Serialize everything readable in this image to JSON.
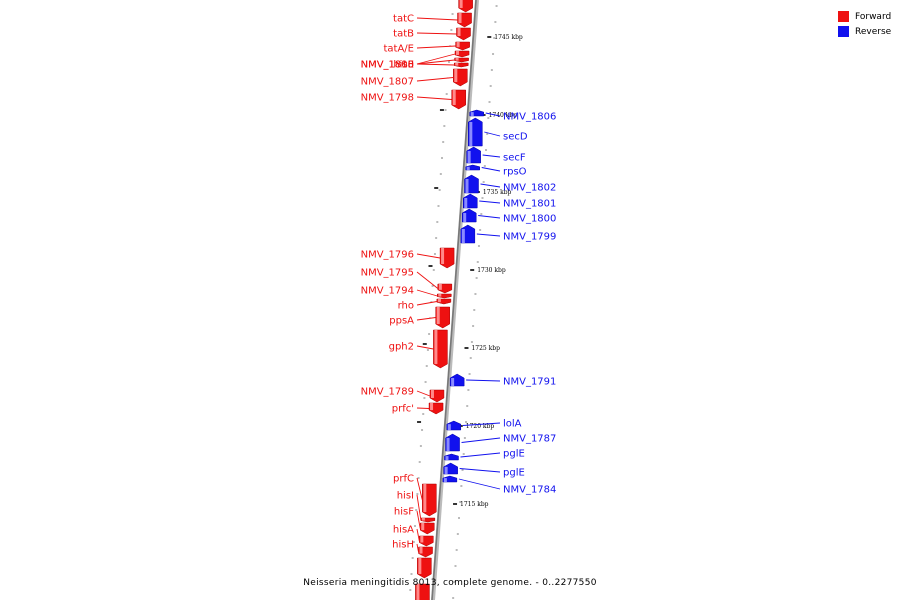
{
  "title": "Neisseria meningitidis 8013, complete genome. - 0..2277550",
  "legend": [
    {
      "label": "Forward",
      "color": "#ee1111"
    },
    {
      "label": "Reverse",
      "color": "#1111ee"
    }
  ],
  "colors": {
    "forward": "#ee1111",
    "reverse": "#1111ee",
    "backbone": "#777777"
  },
  "ticks": [
    "1745 kbp",
    "1740 kbp",
    "1735 kbp",
    "1730 kbp",
    "1725 kbp",
    "1720 kbp",
    "1715 kbp"
  ],
  "forward_genes": [
    "tatC",
    "tatB",
    "tatA/E",
    "NMV_1810",
    "hisE",
    "NMV_1808",
    "NMV_1807",
    "NMV_1798",
    "NMV_1796",
    "NMV_1795",
    "NMV_1794",
    "rho",
    "ppsA",
    "gph2",
    "NMV_1789",
    "prfc'",
    "prfC",
    "hisI",
    "hisF",
    "hisA",
    "hisH"
  ],
  "reverse_genes": [
    "NMV_1806",
    "secD",
    "secF",
    "rpsO",
    "NMV_1802",
    "NMV_1801",
    "NMV_1800",
    "NMV_1799",
    "NMV_1791",
    "lolA",
    "NMV_1787",
    "pglE",
    "pglE",
    "NMV_1784"
  ]
}
